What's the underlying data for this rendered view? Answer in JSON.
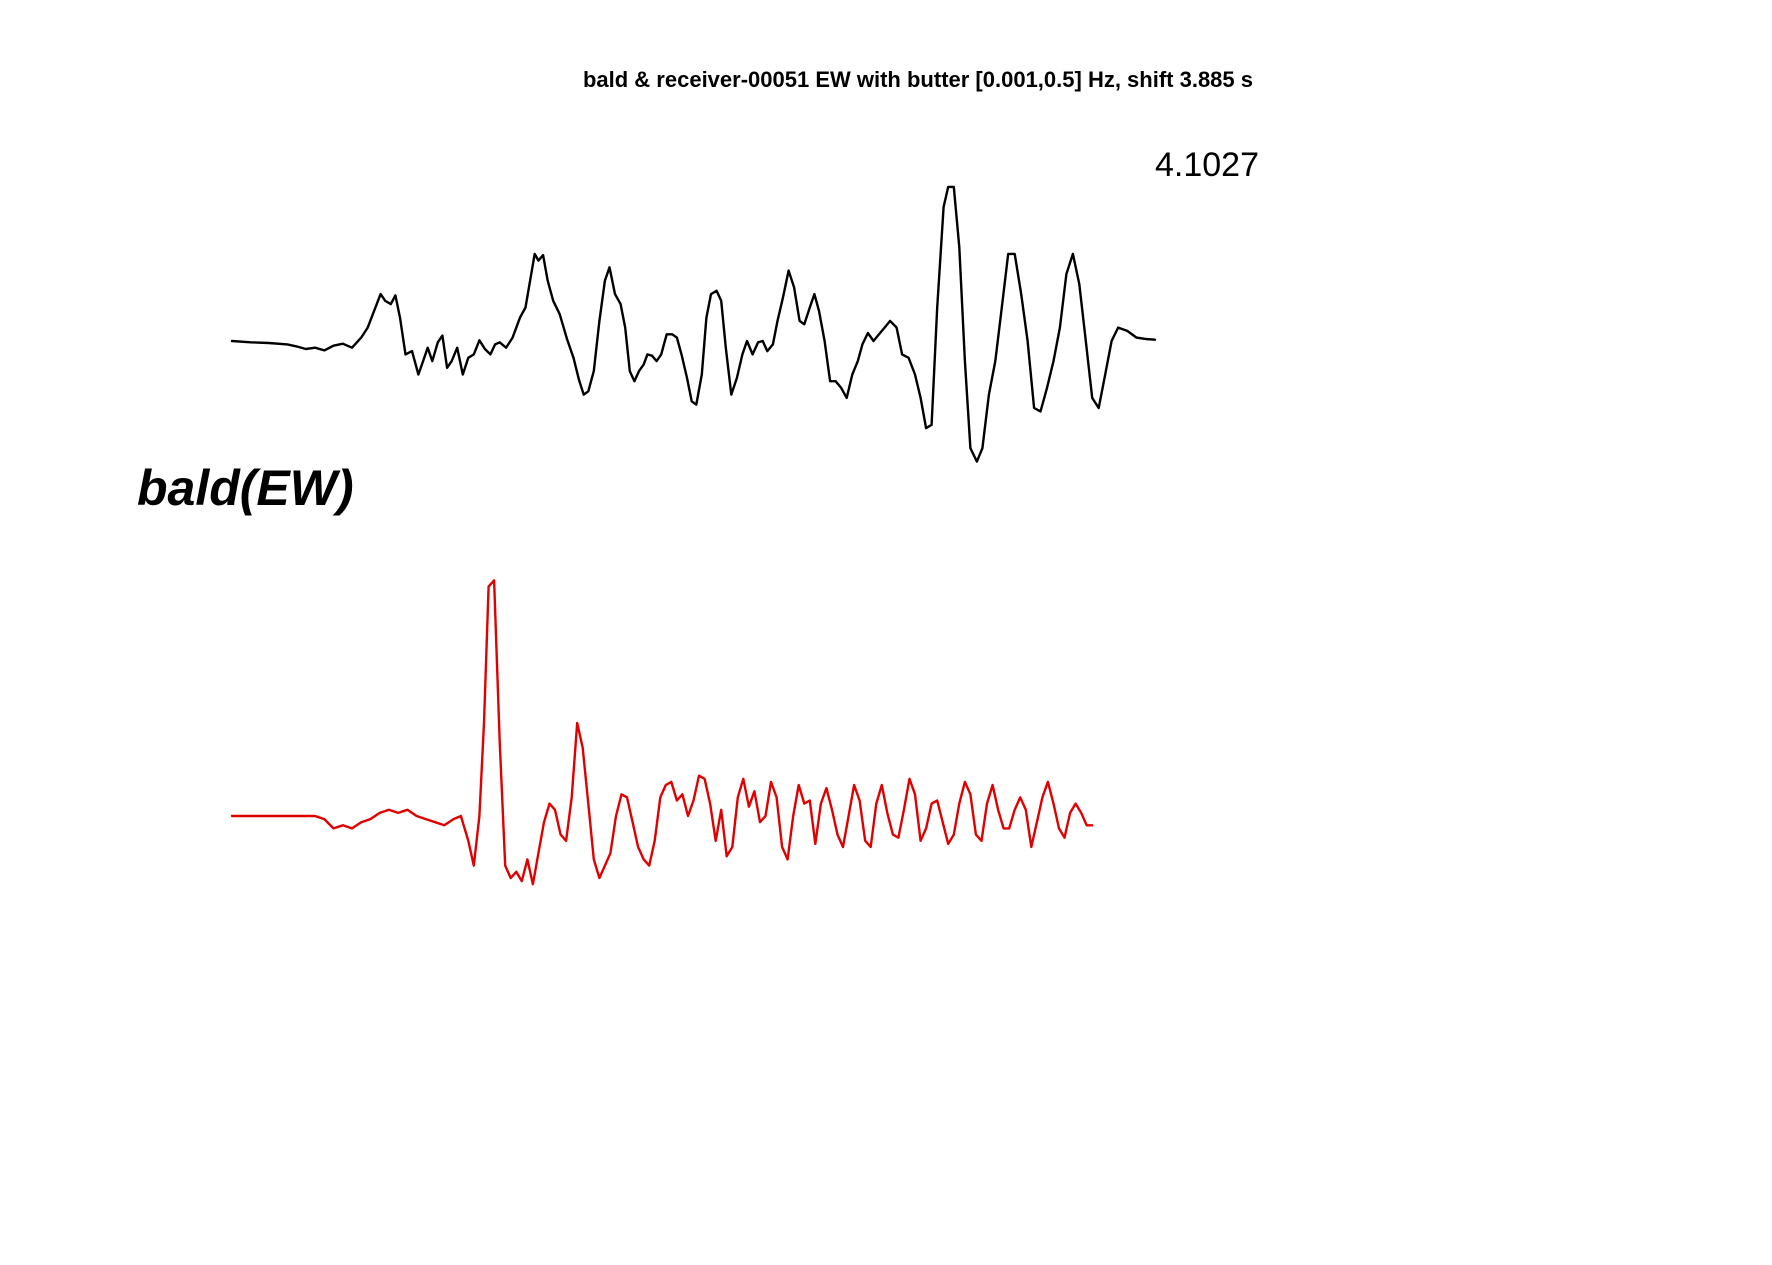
{
  "chart_data": {
    "type": "line",
    "title": "bald & receiver-00051 EW with butter [0.001,0.5] Hz, shift 3.885 s",
    "xlabel": "",
    "ylabel": "",
    "grid": false,
    "axes_visible": false,
    "station_label": "bald(EW)",
    "amplitude_label": "4.1027",
    "series": [
      {
        "role": "observed",
        "color": "#000000",
        "t_range": [
          0,
          100
        ],
        "points": [
          [
            0,
            0
          ],
          [
            2,
            -0.02
          ],
          [
            4,
            -0.03
          ],
          [
            6,
            -0.05
          ],
          [
            7,
            -0.08
          ],
          [
            8,
            -0.12
          ],
          [
            9,
            -0.1
          ],
          [
            10,
            -0.14
          ],
          [
            11,
            -0.07
          ],
          [
            12,
            -0.04
          ],
          [
            13,
            -0.1
          ],
          [
            14,
            0.05
          ],
          [
            14.7,
            0.2
          ],
          [
            15.4,
            0.45
          ],
          [
            16.1,
            0.7
          ],
          [
            16.6,
            0.6
          ],
          [
            17.2,
            0.55
          ],
          [
            17.7,
            0.68
          ],
          [
            18.2,
            0.35
          ],
          [
            18.8,
            -0.2
          ],
          [
            19.5,
            -0.15
          ],
          [
            20.2,
            -0.5
          ],
          [
            20.7,
            -0.3
          ],
          [
            21.2,
            -0.1
          ],
          [
            21.7,
            -0.3
          ],
          [
            22.3,
            -0.02
          ],
          [
            22.8,
            0.08
          ],
          [
            23.3,
            -0.4
          ],
          [
            23.8,
            -0.3
          ],
          [
            24.4,
            -0.1
          ],
          [
            25,
            -0.5
          ],
          [
            25.6,
            -0.25
          ],
          [
            26.2,
            -0.2
          ],
          [
            26.8,
            0.01
          ],
          [
            27.4,
            -0.12
          ],
          [
            28,
            -0.2
          ],
          [
            28.5,
            -0.05
          ],
          [
            29,
            -0.02
          ],
          [
            29.7,
            -0.1
          ],
          [
            30.4,
            0.05
          ],
          [
            31.2,
            0.35
          ],
          [
            31.8,
            0.5
          ],
          [
            32.3,
            0.9
          ],
          [
            32.8,
            1.3
          ],
          [
            33.2,
            1.2
          ],
          [
            33.7,
            1.28
          ],
          [
            34.2,
            0.9
          ],
          [
            34.8,
            0.6
          ],
          [
            35.5,
            0.4
          ],
          [
            36.3,
            0.03
          ],
          [
            37,
            -0.25
          ],
          [
            37.6,
            -0.58
          ],
          [
            38.1,
            -0.8
          ],
          [
            38.6,
            -0.75
          ],
          [
            39.2,
            -0.45
          ],
          [
            39.8,
            0.3
          ],
          [
            40.4,
            0.9
          ],
          [
            40.9,
            1.1
          ],
          [
            41.5,
            0.7
          ],
          [
            42.1,
            0.55
          ],
          [
            42.6,
            0.2
          ],
          [
            43.1,
            -0.45
          ],
          [
            43.6,
            -0.6
          ],
          [
            44.1,
            -0.45
          ],
          [
            44.6,
            -0.35
          ],
          [
            45,
            -0.2
          ],
          [
            45.5,
            -0.22
          ],
          [
            46,
            -0.3
          ],
          [
            46.5,
            -0.2
          ],
          [
            47.1,
            0.1
          ],
          [
            47.7,
            0.1
          ],
          [
            48.2,
            0.05
          ],
          [
            48.7,
            -0.2
          ],
          [
            49.3,
            -0.55
          ],
          [
            49.8,
            -0.9
          ],
          [
            50.3,
            -0.95
          ],
          [
            50.9,
            -0.5
          ],
          [
            51.4,
            0.35
          ],
          [
            51.9,
            0.7
          ],
          [
            52.5,
            0.75
          ],
          [
            53,
            0.6
          ],
          [
            53.5,
            -0.1
          ],
          [
            54.1,
            -0.8
          ],
          [
            54.7,
            -0.55
          ],
          [
            55.3,
            -0.2
          ],
          [
            55.8,
            0.0
          ],
          [
            56.4,
            -0.2
          ],
          [
            57,
            -0.02
          ],
          [
            57.5,
            0.0
          ],
          [
            58,
            -0.15
          ],
          [
            58.6,
            -0.05
          ],
          [
            59.1,
            0.3
          ],
          [
            59.7,
            0.65
          ],
          [
            60.3,
            1.05
          ],
          [
            60.9,
            0.8
          ],
          [
            61.5,
            0.3
          ],
          [
            62,
            0.25
          ],
          [
            62.6,
            0.5
          ],
          [
            63.1,
            0.7
          ],
          [
            63.6,
            0.45
          ],
          [
            64.2,
            0.0
          ],
          [
            64.8,
            -0.6
          ],
          [
            65.4,
            -0.6
          ],
          [
            66,
            -0.7
          ],
          [
            66.6,
            -0.85
          ],
          [
            67.2,
            -0.5
          ],
          [
            67.8,
            -0.3
          ],
          [
            68.3,
            -0.05
          ],
          [
            68.9,
            0.12
          ],
          [
            69.5,
            0.0
          ],
          [
            70.1,
            0.1
          ],
          [
            70.7,
            0.2
          ],
          [
            71.3,
            0.3
          ],
          [
            72,
            0.2
          ],
          [
            72.6,
            -0.2
          ],
          [
            73.3,
            -0.25
          ],
          [
            74,
            -0.5
          ],
          [
            74.6,
            -0.85
          ],
          [
            75.2,
            -1.3
          ],
          [
            75.8,
            -1.25
          ],
          [
            76.4,
            0.5
          ],
          [
            77.1,
            2.0
          ],
          [
            77.6,
            2.3
          ],
          [
            78.2,
            2.3
          ],
          [
            78.8,
            1.4
          ],
          [
            79.4,
            -0.3
          ],
          [
            80,
            -1.6
          ],
          [
            80.7,
            -1.8
          ],
          [
            81.3,
            -1.6
          ],
          [
            82,
            -0.8
          ],
          [
            82.7,
            -0.3
          ],
          [
            83.4,
            0.5
          ],
          [
            84.1,
            1.3
          ],
          [
            84.8,
            1.3
          ],
          [
            85.5,
            0.7
          ],
          [
            86.2,
            0.0
          ],
          [
            86.9,
            -1.0
          ],
          [
            87.6,
            -1.05
          ],
          [
            88.3,
            -0.7
          ],
          [
            89,
            -0.3
          ],
          [
            89.7,
            0.2
          ],
          [
            90.4,
            1.0
          ],
          [
            91.1,
            1.3
          ],
          [
            91.8,
            0.85
          ],
          [
            92.5,
            0.0
          ],
          [
            93.2,
            -0.85
          ],
          [
            93.9,
            -1.0
          ],
          [
            94.6,
            -0.5
          ],
          [
            95.3,
            0.0
          ],
          [
            96,
            0.2
          ],
          [
            97,
            0.15
          ],
          [
            98,
            0.05
          ],
          [
            99,
            0.03
          ],
          [
            100,
            0.02
          ]
        ]
      },
      {
        "role": "synthetic",
        "color": "#e00000",
        "t_range": [
          0,
          100
        ],
        "points": [
          [
            0,
            0
          ],
          [
            5,
            0
          ],
          [
            8,
            0
          ],
          [
            9,
            0.0
          ],
          [
            10,
            -0.05
          ],
          [
            11,
            -0.2
          ],
          [
            12,
            -0.15
          ],
          [
            13,
            -0.2
          ],
          [
            14,
            -0.1
          ],
          [
            15,
            -0.05
          ],
          [
            16,
            0.05
          ],
          [
            17,
            0.1
          ],
          [
            18,
            0.05
          ],
          [
            19,
            0.1
          ],
          [
            20,
            0.0
          ],
          [
            21,
            -0.05
          ],
          [
            22,
            -0.1
          ],
          [
            23,
            -0.15
          ],
          [
            24,
            -0.05
          ],
          [
            24.8,
            0.0
          ],
          [
            25.6,
            -0.4
          ],
          [
            26.2,
            -0.8
          ],
          [
            26.8,
            0.0
          ],
          [
            27.3,
            1.5
          ],
          [
            27.8,
            3.7
          ],
          [
            28.4,
            3.8
          ],
          [
            29,
            1.2
          ],
          [
            29.6,
            -0.8
          ],
          [
            30.2,
            -1.0
          ],
          [
            30.8,
            -0.9
          ],
          [
            31.4,
            -1.05
          ],
          [
            32,
            -0.7
          ],
          [
            32.6,
            -1.1
          ],
          [
            33.2,
            -0.6
          ],
          [
            33.8,
            -0.1
          ],
          [
            34.4,
            0.2
          ],
          [
            35,
            0.1
          ],
          [
            35.6,
            -0.3
          ],
          [
            36.2,
            -0.4
          ],
          [
            36.8,
            0.3
          ],
          [
            37.4,
            1.5
          ],
          [
            38,
            1.1
          ],
          [
            38.6,
            0.2
          ],
          [
            39.2,
            -0.7
          ],
          [
            39.8,
            -1.0
          ],
          [
            40.4,
            -0.8
          ],
          [
            41,
            -0.6
          ],
          [
            41.6,
            0.0
          ],
          [
            42.2,
            0.35
          ],
          [
            42.8,
            0.3
          ],
          [
            43.4,
            -0.1
          ],
          [
            44,
            -0.5
          ],
          [
            44.6,
            -0.7
          ],
          [
            45.2,
            -0.8
          ],
          [
            45.8,
            -0.4
          ],
          [
            46.4,
            0.3
          ],
          [
            47,
            0.5
          ],
          [
            47.6,
            0.55
          ],
          [
            48.2,
            0.25
          ],
          [
            48.8,
            0.35
          ],
          [
            49.4,
            0.0
          ],
          [
            50,
            0.25
          ],
          [
            50.6,
            0.65
          ],
          [
            51.2,
            0.6
          ],
          [
            51.8,
            0.2
          ],
          [
            52.4,
            -0.4
          ],
          [
            53,
            0.1
          ],
          [
            53.6,
            -0.65
          ],
          [
            54.2,
            -0.5
          ],
          [
            54.8,
            0.3
          ],
          [
            55.4,
            0.6
          ],
          [
            56,
            0.15
          ],
          [
            56.6,
            0.4
          ],
          [
            57.2,
            -0.1
          ],
          [
            57.8,
            0.0
          ],
          [
            58.4,
            0.55
          ],
          [
            59,
            0.3
          ],
          [
            59.6,
            -0.5
          ],
          [
            60.2,
            -0.7
          ],
          [
            60.8,
            0.0
          ],
          [
            61.4,
            0.5
          ],
          [
            62,
            0.2
          ],
          [
            62.6,
            0.25
          ],
          [
            63.2,
            -0.45
          ],
          [
            63.8,
            0.2
          ],
          [
            64.4,
            0.45
          ],
          [
            65,
            0.1
          ],
          [
            65.6,
            -0.3
          ],
          [
            66.2,
            -0.5
          ],
          [
            66.8,
            0.0
          ],
          [
            67.4,
            0.5
          ],
          [
            68,
            0.25
          ],
          [
            68.6,
            -0.4
          ],
          [
            69.2,
            -0.5
          ],
          [
            69.8,
            0.2
          ],
          [
            70.4,
            0.5
          ],
          [
            71,
            0.05
          ],
          [
            71.6,
            -0.3
          ],
          [
            72.2,
            -0.35
          ],
          [
            72.8,
            0.1
          ],
          [
            73.4,
            0.6
          ],
          [
            74,
            0.35
          ],
          [
            74.6,
            -0.4
          ],
          [
            75.2,
            -0.2
          ],
          [
            75.8,
            0.2
          ],
          [
            76.4,
            0.25
          ],
          [
            77,
            -0.1
          ],
          [
            77.6,
            -0.45
          ],
          [
            78.2,
            -0.3
          ],
          [
            78.8,
            0.2
          ],
          [
            79.4,
            0.55
          ],
          [
            80,
            0.35
          ],
          [
            80.6,
            -0.3
          ],
          [
            81.2,
            -0.4
          ],
          [
            81.8,
            0.2
          ],
          [
            82.4,
            0.5
          ],
          [
            83,
            0.1
          ],
          [
            83.6,
            -0.2
          ],
          [
            84.2,
            -0.2
          ],
          [
            84.8,
            0.1
          ],
          [
            85.4,
            0.3
          ],
          [
            86,
            0.1
          ],
          [
            86.6,
            -0.5
          ],
          [
            87.2,
            -0.1
          ],
          [
            87.8,
            0.3
          ],
          [
            88.4,
            0.55
          ],
          [
            89,
            0.2
          ],
          [
            89.6,
            -0.2
          ],
          [
            90.2,
            -0.35
          ],
          [
            90.8,
            0.05
          ],
          [
            91.4,
            0.2
          ],
          [
            92,
            0.05
          ],
          [
            92.6,
            -0.15
          ],
          [
            93.2,
            -0.15
          ]
        ]
      }
    ]
  }
}
